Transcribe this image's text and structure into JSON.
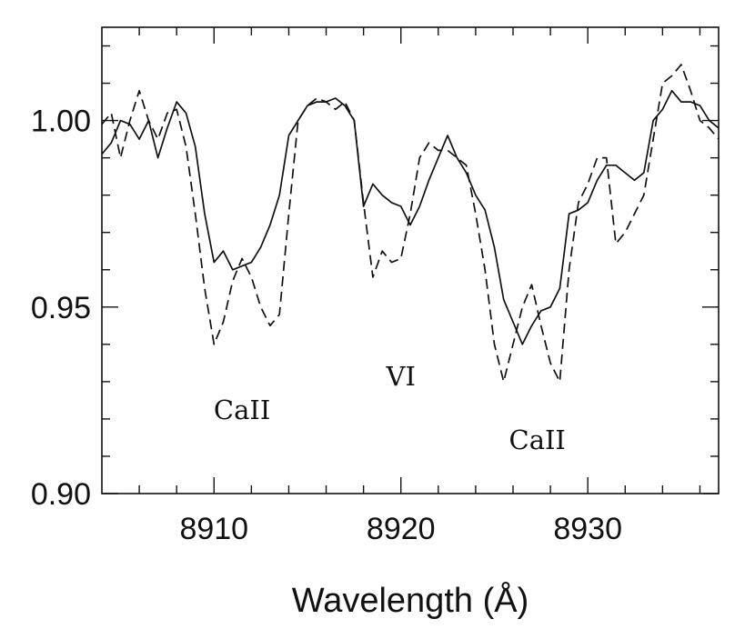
{
  "chart_data": {
    "type": "line",
    "xlabel": "Wavelength (Å)",
    "ylabel": "",
    "xlim": [
      8904,
      8937
    ],
    "ylim": [
      0.9,
      1.025
    ],
    "xticks": [
      8910,
      8920,
      8930
    ],
    "xtick_labels": [
      "8910",
      "8920",
      "8930"
    ],
    "yticks": [
      0.9,
      0.95,
      1.0
    ],
    "ytick_labels": [
      "0.90",
      "0.95",
      "1.00"
    ],
    "grid": false,
    "annotations": [
      {
        "text": "CaII",
        "x": 8911.5,
        "y": 0.92
      },
      {
        "text": "VI",
        "x": 8920.0,
        "y": 0.929
      },
      {
        "text": "CaII",
        "x": 8927.3,
        "y": 0.912
      }
    ],
    "series": [
      {
        "style": "solid",
        "x": [
          8904.0,
          8904.5,
          8905.0,
          8905.5,
          8906.0,
          8906.5,
          8907.0,
          8907.5,
          8908.0,
          8908.5,
          8909.0,
          8909.5,
          8910.0,
          8910.5,
          8911.0,
          8911.5,
          8912.0,
          8912.5,
          8913.0,
          8913.5,
          8914.0,
          8914.5,
          8915.0,
          8915.5,
          8916.0,
          8916.5,
          8917.0,
          8917.5,
          8918.0,
          8918.5,
          8919.0,
          8919.5,
          8920.0,
          8920.5,
          8921.0,
          8921.5,
          8922.0,
          8922.5,
          8923.0,
          8923.5,
          8924.0,
          8924.5,
          8925.0,
          8925.5,
          8926.0,
          8926.5,
          8927.0,
          8927.5,
          8928.0,
          8928.5,
          8929.0,
          8929.5,
          8930.0,
          8930.5,
          8931.0,
          8931.5,
          8932.0,
          8932.5,
          8933.0,
          8933.5,
          8934.0,
          8934.5,
          8935.0,
          8935.5,
          8936.0,
          8936.5,
          8937.0
        ],
        "y": [
          0.991,
          0.994,
          1.0,
          0.999,
          0.995,
          1.0,
          0.99,
          0.998,
          1.005,
          1.002,
          0.993,
          0.975,
          0.962,
          0.965,
          0.96,
          0.961,
          0.962,
          0.966,
          0.972,
          0.98,
          0.996,
          1.0,
          1.004,
          1.005,
          1.005,
          1.006,
          1.004,
          1.0,
          0.977,
          0.983,
          0.98,
          0.978,
          0.977,
          0.972,
          0.977,
          0.984,
          0.99,
          0.996,
          0.99,
          0.986,
          0.98,
          0.976,
          0.966,
          0.952,
          0.946,
          0.94,
          0.945,
          0.949,
          0.95,
          0.955,
          0.975,
          0.976,
          0.978,
          0.984,
          0.988,
          0.988,
          0.986,
          0.984,
          0.986,
          1.0,
          1.003,
          1.008,
          1.005,
          1.005,
          1.004,
          1.0,
          0.998
        ]
      },
      {
        "style": "dashed",
        "x": [
          8904.0,
          8904.5,
          8905.0,
          8905.5,
          8906.0,
          8906.5,
          8907.0,
          8907.5,
          8908.0,
          8908.5,
          8909.0,
          8909.5,
          8910.0,
          8910.5,
          8911.0,
          8911.5,
          8912.0,
          8912.5,
          8913.0,
          8913.5,
          8914.0,
          8914.5,
          8915.0,
          8915.5,
          8916.0,
          8916.5,
          8917.0,
          8917.5,
          8918.0,
          8918.5,
          8919.0,
          8919.5,
          8920.0,
          8920.5,
          8921.0,
          8921.5,
          8922.0,
          8922.5,
          8923.0,
          8923.5,
          8924.0,
          8924.5,
          8925.0,
          8925.5,
          8926.0,
          8926.5,
          8927.0,
          8927.5,
          8928.0,
          8928.5,
          8929.0,
          8929.5,
          8930.0,
          8930.5,
          8931.0,
          8931.5,
          8932.0,
          8932.5,
          8933.0,
          8933.5,
          8934.0,
          8934.5,
          8935.0,
          8935.5,
          8936.0,
          8936.5,
          8937.0
        ],
        "y": [
          0.999,
          1.002,
          0.99,
          1.0,
          1.008,
          1.0,
          0.995,
          1.002,
          1.003,
          0.993,
          0.975,
          0.955,
          0.94,
          0.946,
          0.957,
          0.963,
          0.958,
          0.95,
          0.945,
          0.948,
          0.975,
          1.0,
          1.004,
          1.006,
          1.005,
          1.003,
          1.005,
          1.0,
          0.978,
          0.958,
          0.965,
          0.962,
          0.963,
          0.975,
          0.99,
          0.994,
          0.992,
          0.992,
          0.99,
          0.988,
          0.975,
          0.96,
          0.94,
          0.93,
          0.94,
          0.95,
          0.956,
          0.945,
          0.935,
          0.93,
          0.96,
          0.978,
          0.983,
          0.99,
          0.99,
          0.967,
          0.97,
          0.975,
          0.98,
          0.995,
          1.01,
          1.012,
          1.015,
          1.008,
          1.0,
          0.998,
          0.995
        ]
      }
    ]
  }
}
